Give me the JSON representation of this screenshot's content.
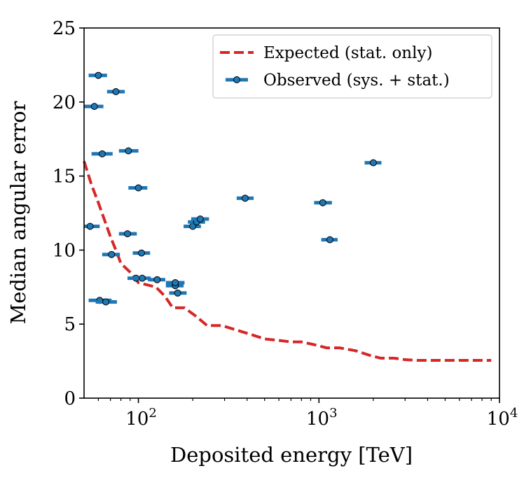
{
  "chart_data": {
    "type": "scatter",
    "title": "",
    "xlabel": "Deposited energy [TeV]",
    "ylabel": "Median angular error",
    "xscale": "log",
    "xlim": [
      50,
      10000
    ],
    "ylim": [
      0,
      25
    ],
    "y_ticks": [
      0,
      5,
      10,
      15,
      20,
      25
    ],
    "y_tick_labels": [
      "0",
      "5",
      "10",
      "15",
      "20",
      "25"
    ],
    "x_ticks": [
      100,
      1000,
      10000
    ],
    "x_tick_labels": [
      {
        "base": "10",
        "exp": "2"
      },
      {
        "base": "10",
        "exp": "3"
      },
      {
        "base": "10",
        "exp": "4"
      }
    ],
    "grid": false,
    "legend_position": "top-right",
    "legend": [
      {
        "label": "Expected (stat. only)",
        "style": "dashed-line",
        "color": "#d62728"
      },
      {
        "label": "Observed (sys. + stat.)",
        "style": "marker-errorbar",
        "color": "#1f77b4"
      }
    ],
    "series": [
      {
        "name": "Expected (stat. only)",
        "color": "#d62728",
        "style": "dashed",
        "x": [
          50,
          55,
          60,
          65,
          70,
          75,
          80,
          90,
          100,
          125,
          140,
          155,
          180,
          210,
          240,
          290,
          350,
          420,
          500,
          600,
          700,
          800,
          950,
          1100,
          1300,
          1600,
          1900,
          2200,
          2600,
          3000,
          3500,
          4500,
          6000,
          9000
        ],
        "y": [
          16.0,
          14.4,
          13.2,
          12.0,
          10.9,
          10.0,
          9.1,
          8.5,
          7.8,
          7.5,
          6.9,
          6.1,
          6.1,
          5.5,
          4.9,
          4.9,
          4.6,
          4.3,
          4.0,
          3.9,
          3.8,
          3.8,
          3.6,
          3.4,
          3.4,
          3.2,
          2.9,
          2.7,
          2.7,
          2.6,
          2.55,
          2.55,
          2.55,
          2.55
        ]
      },
      {
        "name": "Observed (sys. + stat.)",
        "color": "#1f77b4",
        "x": [
          60,
          57,
          75,
          63,
          88,
          100,
          54,
          87,
          71,
          104,
          97,
          105,
          127,
          160,
          160,
          165,
          61,
          66,
          200,
          210,
          220,
          390,
          1050,
          1150,
          2000
        ],
        "y": [
          21.8,
          19.7,
          20.7,
          16.5,
          16.7,
          14.2,
          11.6,
          11.1,
          9.7,
          9.8,
          8.1,
          8.1,
          8.0,
          7.6,
          7.8,
          7.1,
          6.6,
          6.5,
          11.6,
          11.9,
          12.1,
          13.5,
          13.2,
          10.7,
          15.9
        ],
        "xerr_lo": [
          7,
          7,
          8,
          8,
          10,
          12,
          7,
          9,
          8,
          11,
          10,
          12,
          14,
          18,
          18,
          17,
          8,
          8,
          22,
          22,
          24,
          40,
          110,
          120,
          210
        ],
        "xerr_hi": [
          7,
          7,
          9,
          9,
          12,
          12,
          7,
          11,
          8,
          12,
          11,
          12,
          14,
          18,
          20,
          20,
          10,
          10,
          22,
          24,
          26,
          45,
          130,
          120,
          220
        ]
      }
    ]
  }
}
